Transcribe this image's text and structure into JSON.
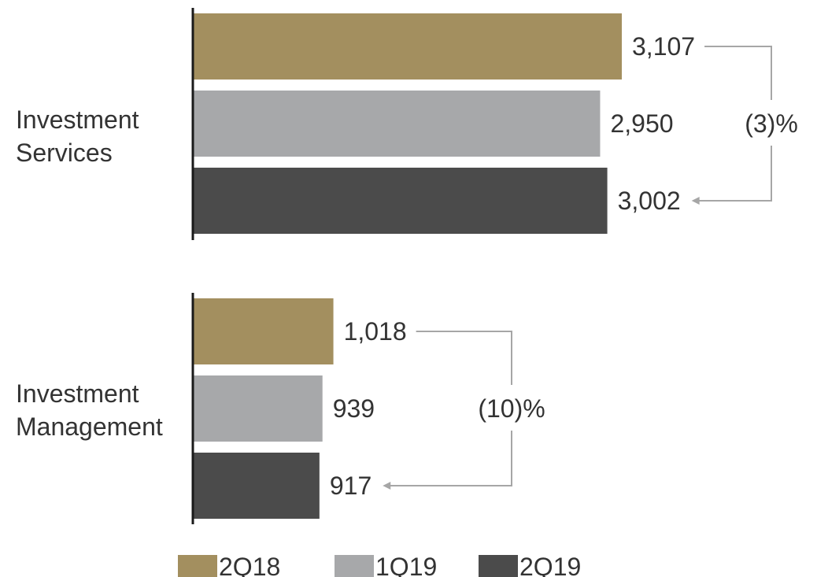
{
  "chart_data": {
    "type": "bar",
    "orientation": "horizontal",
    "categories": [
      "Investment Services",
      "Investment Management"
    ],
    "category_lines": [
      [
        "Investment",
        "Services"
      ],
      [
        "Investment",
        "Management"
      ]
    ],
    "series": [
      {
        "name": "2Q18",
        "color": "#a38f5f",
        "values": [
          3107,
          1018
        ],
        "labels": [
          "3,107",
          "1,018"
        ]
      },
      {
        "name": "1Q19",
        "color": "#a7a8aa",
        "values": [
          2950,
          939
        ],
        "labels": [
          "2,950",
          "939"
        ]
      },
      {
        "name": "2Q19",
        "color": "#4b4b4b",
        "values": [
          3002,
          917
        ],
        "labels": [
          "3,002",
          "917"
        ]
      }
    ],
    "annotations": [
      {
        "category": "Investment Services",
        "from": "2Q18",
        "to": "2Q19",
        "text": "(3)%"
      },
      {
        "category": "Investment Management",
        "from": "2Q18",
        "to": "2Q19",
        "text": "(10)%"
      }
    ],
    "legend": {
      "position": "bottom",
      "entries": [
        "2Q18",
        "1Q19",
        "2Q19"
      ]
    },
    "grid": false
  }
}
